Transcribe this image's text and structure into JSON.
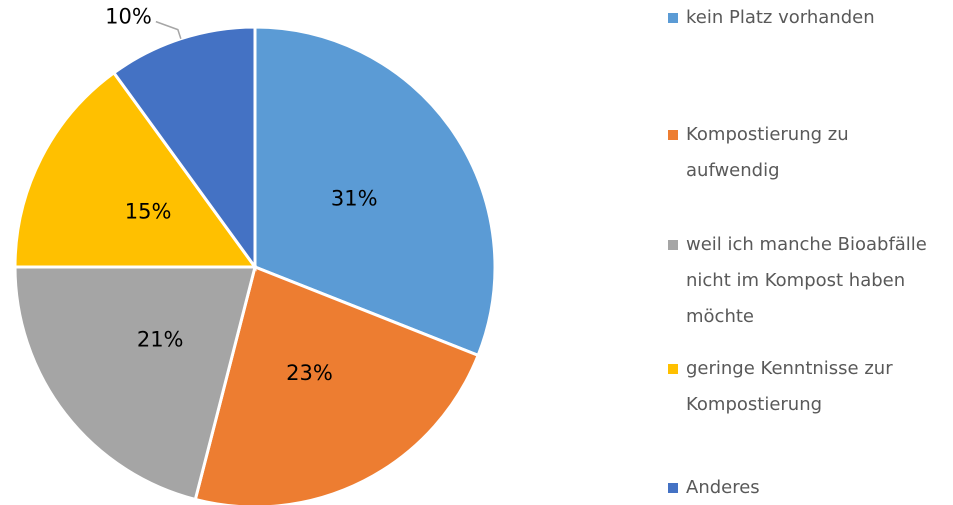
{
  "chart_data": {
    "type": "pie",
    "categories": [
      "kein Platz vorhanden",
      "Kompostierung zu aufwendig",
      "weil ich manche Bioabfälle nicht im Kompost haben möchte",
      "geringe Kenntnisse zur Kompostierung",
      "Anderes"
    ],
    "values": [
      31,
      23,
      21,
      15,
      10
    ],
    "value_labels": [
      "31%",
      "23%",
      "21%",
      "15%",
      "10%"
    ],
    "colors": [
      "#5b9bd5",
      "#ed7d31",
      "#a5a5a5",
      "#ffc000",
      "#4472c4"
    ],
    "legend": "right"
  }
}
